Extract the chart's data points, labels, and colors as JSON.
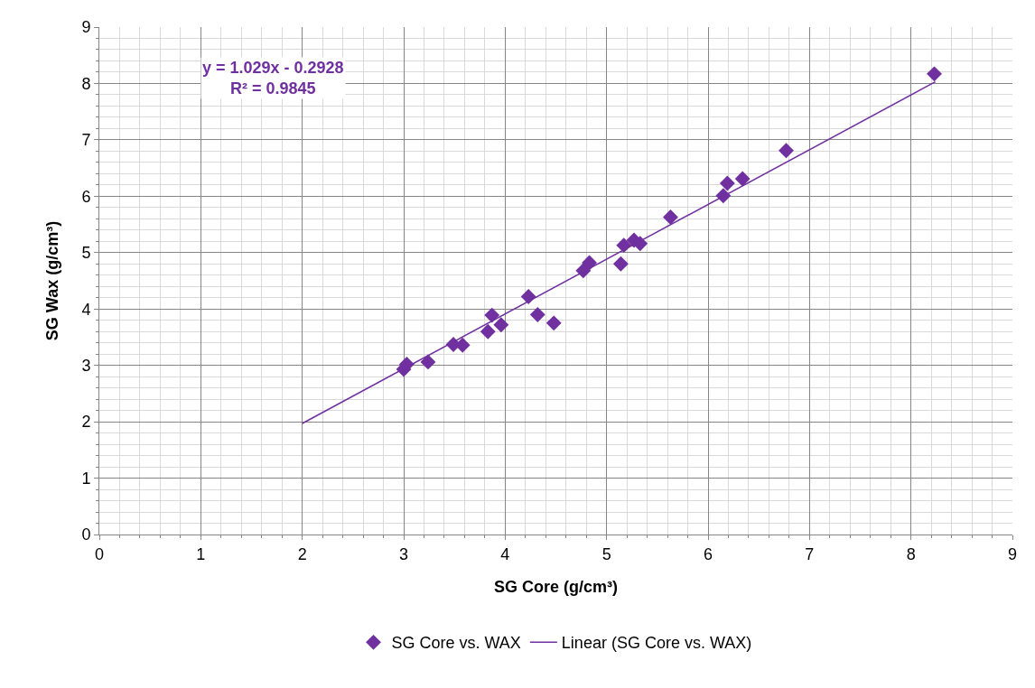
{
  "chart_data": {
    "type": "scatter",
    "xlabel": "SG Core (g/cm³)",
    "ylabel": "SG Wax (g/cm³)",
    "xlim": [
      0,
      9
    ],
    "xticks": [
      0,
      1,
      2,
      3,
      4,
      5,
      6,
      7,
      8,
      9
    ],
    "ylim": [
      0,
      9
    ],
    "yticks": [
      0,
      1,
      2,
      3,
      4,
      5,
      6,
      7,
      8,
      9
    ],
    "grid": true,
    "legend": "bottom",
    "annotations": [
      "y = 1.029x - 0.2928\nR² = 0.9845"
    ],
    "series": [
      {
        "name": "SG Core vs. WAX",
        "marker": "diamond",
        "color": "#7030a0",
        "x": [
          3.0,
          3.03,
          3.24,
          3.49,
          3.58,
          3.83,
          3.87,
          3.96,
          4.23,
          4.32,
          4.48,
          4.77,
          4.83,
          5.14,
          5.17,
          5.22,
          5.27,
          5.33,
          5.63,
          6.15,
          6.19,
          6.34,
          6.77,
          8.23
        ],
        "values": [
          2.93,
          3.02,
          3.06,
          3.37,
          3.36,
          3.6,
          3.89,
          3.72,
          4.22,
          3.9,
          3.75,
          4.68,
          4.82,
          4.8,
          5.13,
          null,
          5.22,
          5.16,
          5.63,
          6.01,
          6.23,
          6.31,
          6.81,
          8.17
        ]
      },
      {
        "name": "Linear (SG Core vs. WAX)",
        "type": "line",
        "color": "#7030a0",
        "x": [
          2.0,
          8.24
        ],
        "values": [
          1.97,
          8.03
        ]
      }
    ]
  }
}
